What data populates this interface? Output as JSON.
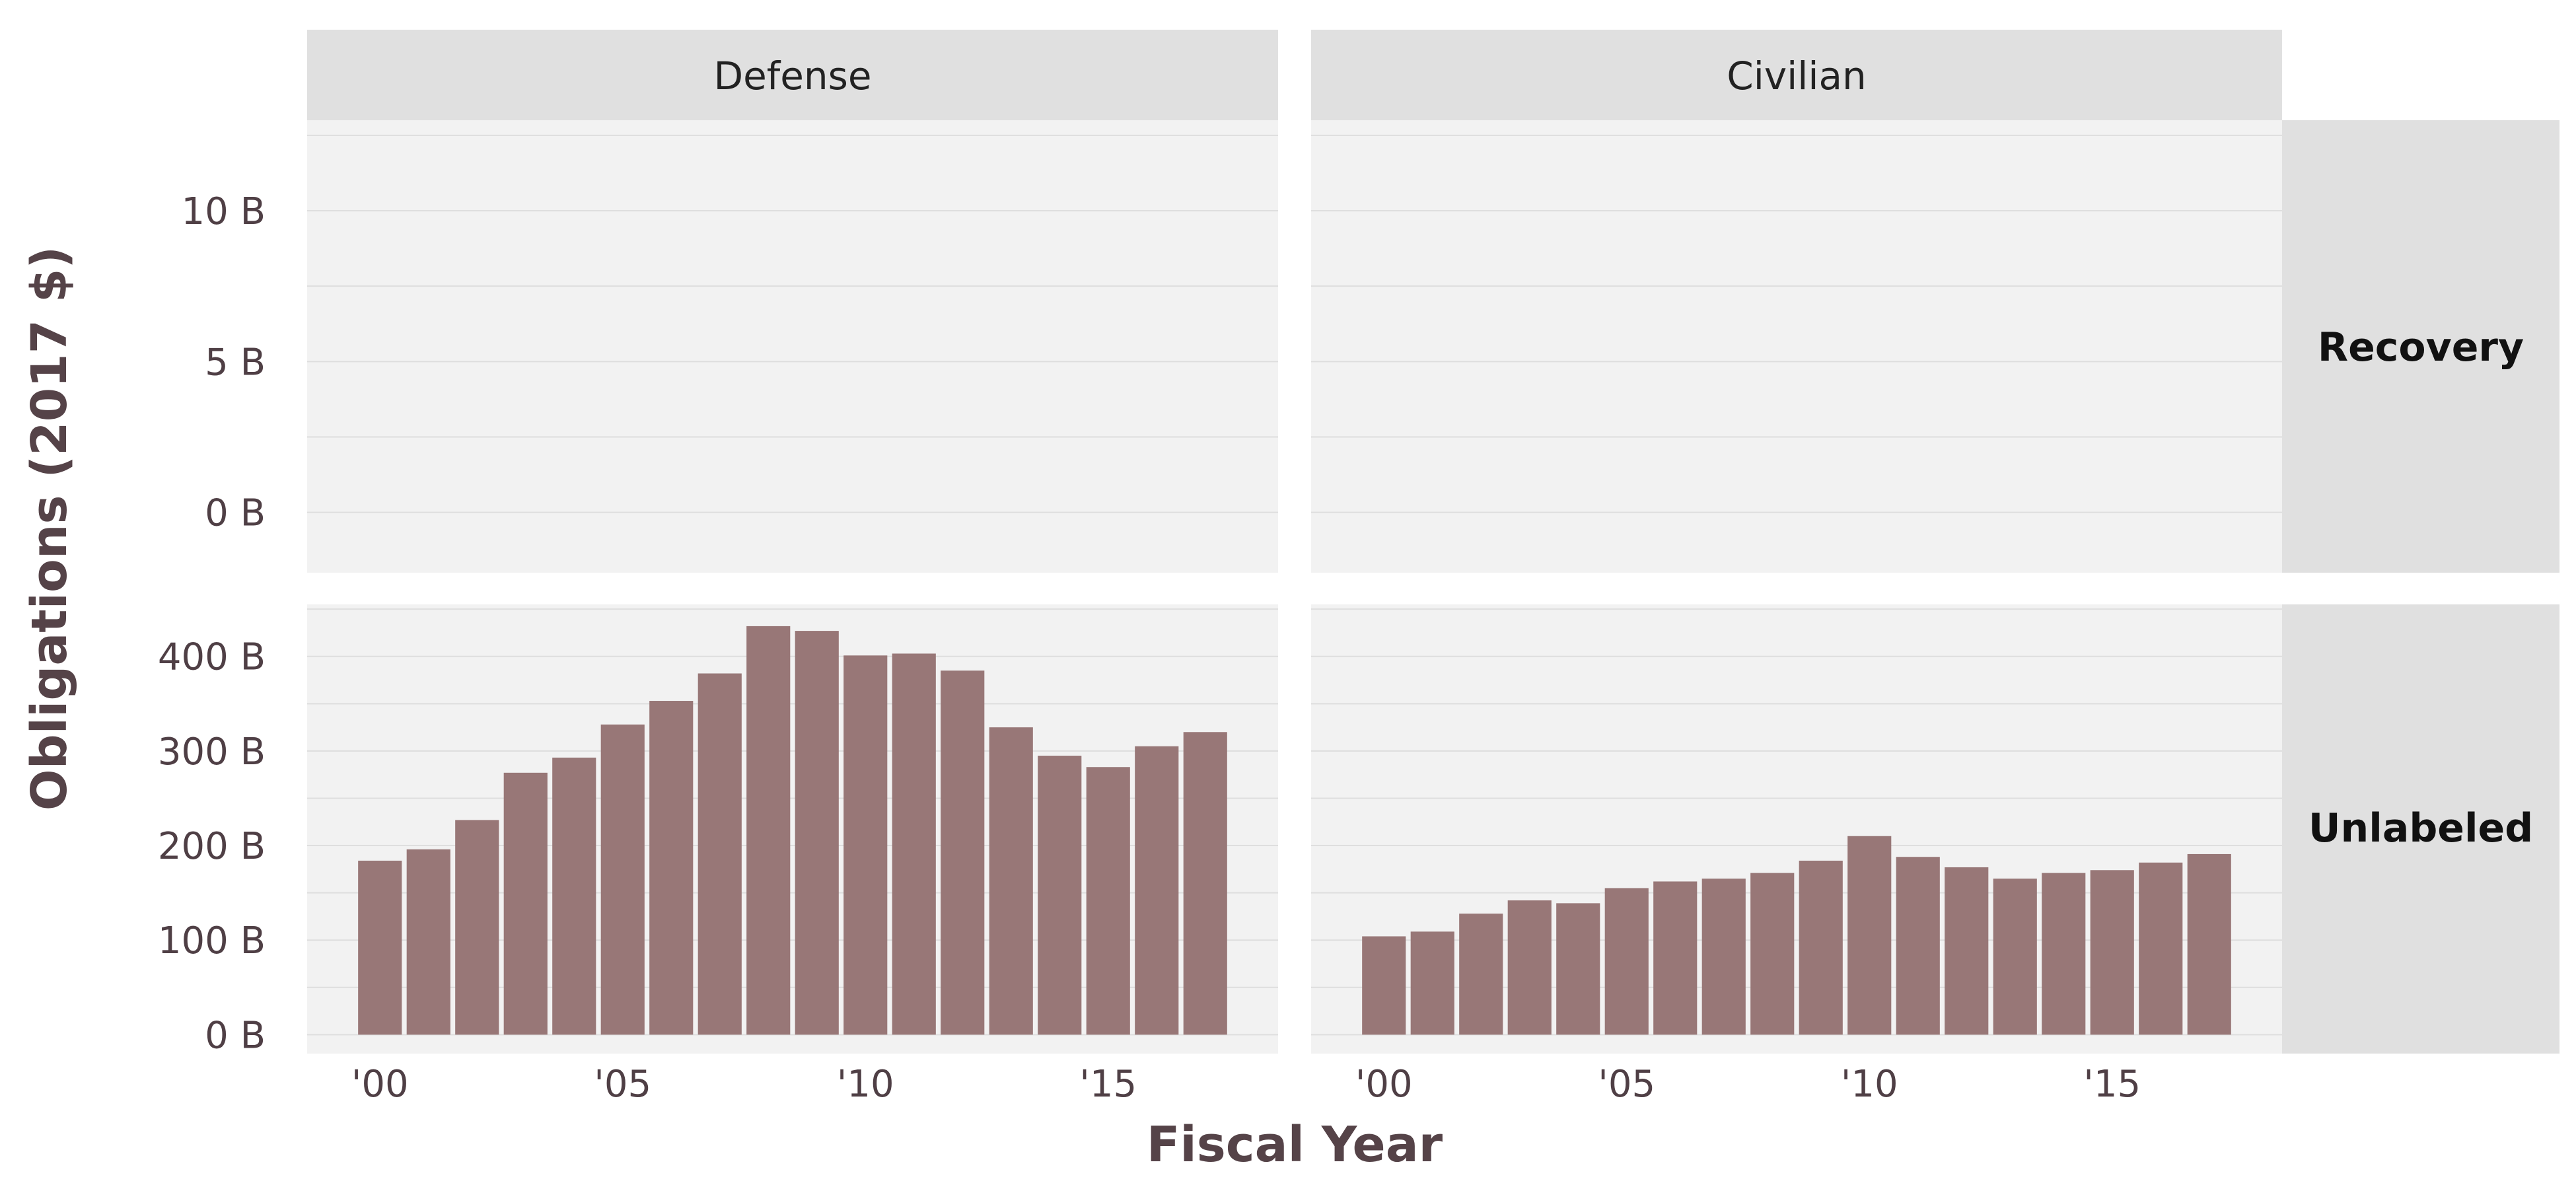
{
  "chart_data": {
    "type": "bar",
    "xlabel": "Fiscal Year",
    "ylabel": "Obligations (2017 $)",
    "bar_color": "#987777",
    "panel_background": "#f2f2f2",
    "strip_background": "#e0e0e0",
    "gridline_color": "#dedede",
    "grid": true,
    "x_range": [
      1998.5,
      2018.5
    ],
    "x_ticks": [
      2000,
      2005,
      2010,
      2015
    ],
    "x_tick_labels": [
      "'00",
      "'05",
      "'10",
      "'15"
    ],
    "columns": [
      "Defense",
      "Civilian"
    ],
    "rows": [
      {
        "label": "Recovery",
        "ylim": [
          -2,
          13
        ],
        "y_ticks": [
          0,
          5,
          10
        ],
        "y_tick_labels": [
          "0 B",
          "5 B",
          "10 B"
        ]
      },
      {
        "label": "Unlabeled",
        "ylim": [
          -20,
          455
        ],
        "y_ticks": [
          0,
          100,
          200,
          300,
          400
        ],
        "y_tick_labels": [
          "0 B",
          "100 B",
          "200 B",
          "300 B",
          "400 B"
        ]
      }
    ],
    "panels": [
      {
        "column": "Defense",
        "row": "Recovery",
        "x": [],
        "values": []
      },
      {
        "column": "Civilian",
        "row": "Recovery",
        "x": [],
        "values": []
      },
      {
        "column": "Defense",
        "row": "Unlabeled",
        "x": [
          2000,
          2001,
          2002,
          2003,
          2004,
          2005,
          2006,
          2007,
          2008,
          2009,
          2010,
          2011,
          2012,
          2013,
          2014,
          2015,
          2016,
          2017
        ],
        "values": [
          184,
          196,
          227,
          277,
          293,
          328,
          353,
          382,
          432,
          427,
          401,
          403,
          385,
          325,
          295,
          283,
          305,
          320
        ]
      },
      {
        "column": "Civilian",
        "row": "Unlabeled",
        "x": [
          2000,
          2001,
          2002,
          2003,
          2004,
          2005,
          2006,
          2007,
          2008,
          2009,
          2010,
          2011,
          2012,
          2013,
          2014,
          2015,
          2016,
          2017
        ],
        "values": [
          104,
          109,
          128,
          142,
          139,
          155,
          162,
          165,
          171,
          184,
          210,
          188,
          177,
          165,
          171,
          174,
          182,
          191
        ]
      }
    ]
  }
}
